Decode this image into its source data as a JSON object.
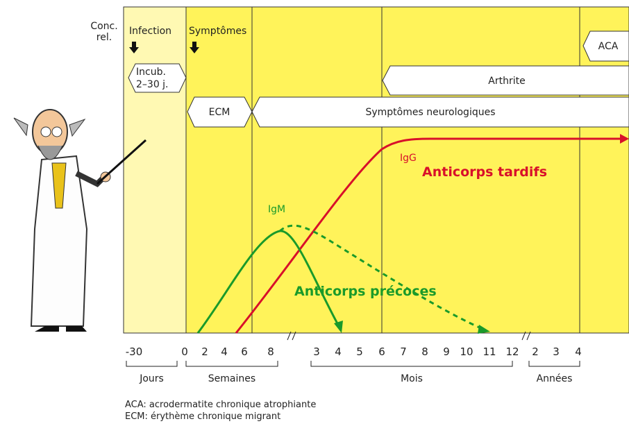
{
  "axis_label": [
    "Conc.",
    "rel."
  ],
  "events": [
    "Infection",
    "Symptômes"
  ],
  "phases": {
    "incubation": [
      "Incub.",
      "2–30 j."
    ],
    "ecm": "ECM",
    "neuro": "Symptômes neurologiques",
    "arthrite": "Arthrite",
    "aca": "ACA"
  },
  "curves": {
    "igm": "IgM",
    "igg": "IgG",
    "early": "Anticorps précoces",
    "late": "Anticorps tardifs"
  },
  "ticks": [
    "-30",
    "0",
    "2",
    "4",
    "6",
    "8",
    "3",
    "4",
    "5",
    "6",
    "7",
    "8",
    "9",
    "10",
    "11",
    "12",
    "2",
    "3",
    "4"
  ],
  "units": [
    "Jours",
    "Semaines",
    "Mois",
    "Années"
  ],
  "footnotes": [
    "ACA: acrodermatite chronique atrophiante",
    "ECM: érythème chronique migrant"
  ]
}
